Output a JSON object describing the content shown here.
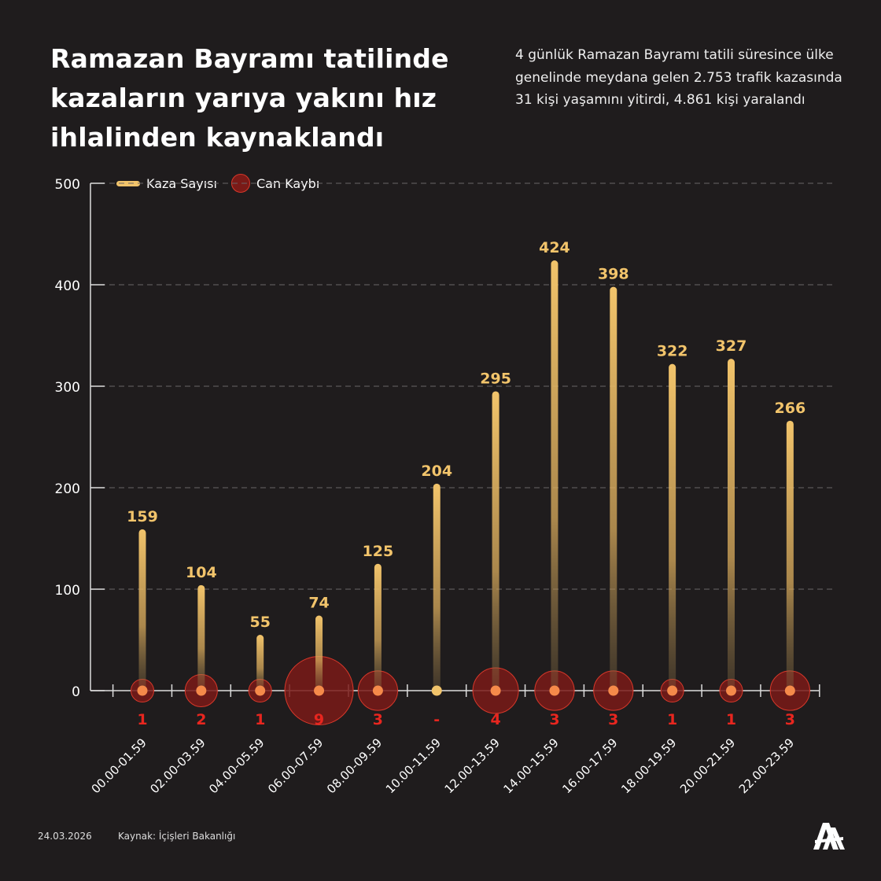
{
  "title": "Ramazan Bayramı tatilinde kazaların yarıya yakını hız ihlalinden kaynaklandı",
  "subtitle": "4 günlük Ramazan Bayramı tatili süresince ülke genelinde meydana gelen 2.753 trafik kazasında 31 kişi yaşamını yitirdi, 4.861 kişi yaralandı",
  "legend": {
    "series1": "Kaza Sayısı",
    "series2": "Can Kaybı"
  },
  "footer": {
    "date": "24.03.2026",
    "source": "Kaynak: İçişleri Bakanlığı",
    "logo": "AA"
  },
  "colors": {
    "background": "#1f1c1d",
    "bar": "#f2c46b",
    "bubble": "#7a1a17",
    "bubble_stroke": "#d8382a",
    "dot": "#f58a4a",
    "death_label": "#e8261f"
  },
  "chart_data": {
    "type": "bar",
    "categories": [
      "00.00-01.59",
      "02.00-03.59",
      "04.00-05.59",
      "06.00-07.59",
      "08.00-09.59",
      "10.00-11.59",
      "12.00-13.59",
      "14.00-15.59",
      "16.00-17.59",
      "18.00-19.59",
      "20.00-21.59",
      "22.00-23.59"
    ],
    "series": [
      {
        "name": "Kaza Sayısı",
        "values": [
          159,
          104,
          55,
          74,
          125,
          204,
          295,
          424,
          398,
          322,
          327,
          266
        ]
      },
      {
        "name": "Can Kaybı",
        "values": [
          1,
          2,
          1,
          9,
          3,
          0,
          4,
          3,
          3,
          1,
          1,
          3
        ],
        "labels": [
          "1",
          "2",
          "1",
          "9",
          "3",
          "-",
          "4",
          "3",
          "3",
          "1",
          "1",
          "3"
        ]
      }
    ],
    "ylim": [
      0,
      500
    ],
    "yticks": [
      0,
      100,
      200,
      300,
      400,
      500
    ],
    "grid": true,
    "legend_position": "top-left"
  }
}
